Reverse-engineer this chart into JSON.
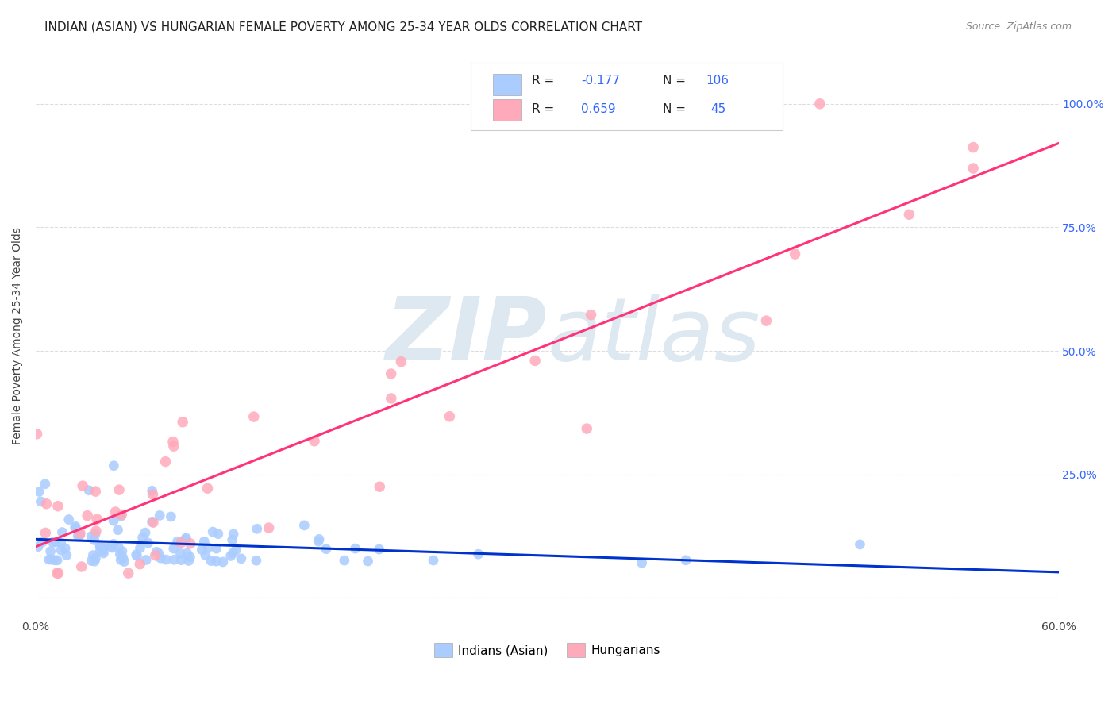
{
  "title": "INDIAN (ASIAN) VS HUNGARIAN FEMALE POVERTY AMONG 25-34 YEAR OLDS CORRELATION CHART",
  "source": "Source: ZipAtlas.com",
  "ylabel": "Female Poverty Among 25-34 Year Olds",
  "xlim": [
    0.0,
    0.6
  ],
  "background_color": "#ffffff",
  "watermark_zip": "ZIP",
  "watermark_atlas": "atlas",
  "watermark_color": "#dde8f0",
  "blue_R": -0.177,
  "blue_N": 106,
  "pink_R": 0.659,
  "pink_N": 45,
  "blue_scatter_color": "#aaccff",
  "blue_line_color": "#0033cc",
  "pink_scatter_color": "#ffaabb",
  "pink_line_color": "#ff3377",
  "legend_R_color": "#3366ff",
  "grid_color": "#dddddd",
  "title_color": "#222222",
  "right_tick_color": "#3366ff",
  "ytick_positions": [
    0.0,
    0.25,
    0.5,
    0.75,
    1.0
  ],
  "ytick_labels_right": [
    "",
    "25.0%",
    "50.0%",
    "75.0%",
    "100.0%"
  ],
  "xtick_positions": [
    0.0,
    0.1,
    0.2,
    0.3,
    0.4,
    0.5,
    0.6
  ],
  "xtick_labels": [
    "0.0%",
    "",
    "",
    "",
    "",
    "",
    "60.0%"
  ]
}
